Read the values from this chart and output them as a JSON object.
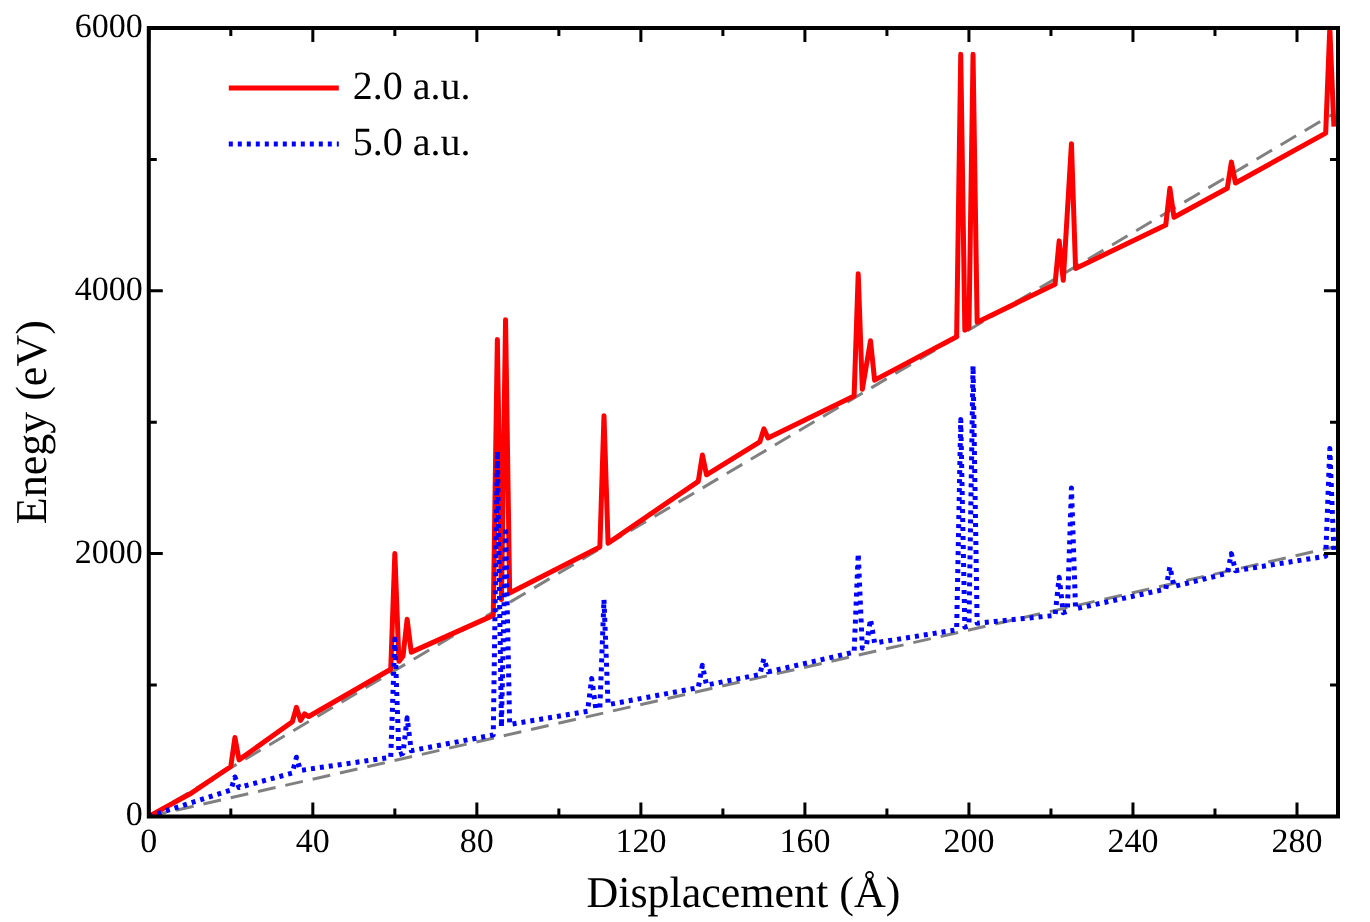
{
  "chart_data": {
    "type": "line",
    "xlabel": "Displacement (Å)",
    "ylabel": "Enegy (eV)",
    "xlim": [
      0,
      290
    ],
    "xticks": [
      0,
      40,
      80,
      120,
      160,
      200,
      240,
      280
    ],
    "ylim": [
      0,
      6000
    ],
    "yticks": [
      0,
      2000,
      4000,
      6000
    ],
    "grid": false,
    "legend": "top left",
    "marker": "none",
    "series": [
      {
        "name": "2.0 a.u.",
        "color": "#ff0000",
        "line_style": "solid",
        "x": [
          0,
          10,
          20,
          21,
          22,
          35,
          36,
          37,
          38,
          39,
          59,
          60,
          61,
          62,
          63,
          64,
          84,
          85,
          86,
          87,
          88,
          110,
          111,
          112,
          134,
          135,
          136,
          149,
          150,
          151,
          172,
          173,
          174,
          176,
          177,
          197,
          198,
          199,
          200,
          201,
          202,
          221,
          222,
          223,
          225,
          226,
          248,
          249,
          250,
          263,
          264,
          265,
          287,
          288,
          289
        ],
        "values": [
          0,
          170,
          380,
          600,
          430,
          720,
          830,
          730,
          780,
          760,
          1120,
          2000,
          1180,
          1220,
          1500,
          1250,
          1530,
          3630,
          1650,
          3780,
          1700,
          2050,
          3050,
          2080,
          2550,
          2750,
          2600,
          2850,
          2950,
          2880,
          3200,
          4130,
          3250,
          3620,
          3320,
          3650,
          5800,
          3700,
          3720,
          5800,
          3760,
          4050,
          4380,
          4080,
          5120,
          4170,
          4500,
          4780,
          4560,
          4780,
          4980,
          4820,
          5200,
          6000,
          5250
        ]
      },
      {
        "name": "5.0 a.u.",
        "color": "#0000ff",
        "line_style": "dotted",
        "x": [
          0,
          10,
          20,
          21,
          22,
          35,
          36,
          37,
          59,
          60,
          61,
          62,
          63,
          64,
          84,
          85,
          86,
          87,
          88,
          107,
          108,
          109,
          110,
          111,
          112,
          134,
          135,
          136,
          149,
          150,
          151,
          172,
          173,
          174,
          175,
          176,
          177,
          197,
          198,
          199,
          200,
          201,
          202,
          221,
          222,
          223,
          224,
          225,
          226,
          248,
          249,
          250,
          263,
          264,
          265,
          287,
          288,
          289
        ],
        "values": [
          0,
          100,
          200,
          300,
          220,
          330,
          450,
          350,
          450,
          1350,
          470,
          480,
          750,
          500,
          620,
          2780,
          680,
          2200,
          700,
          800,
          1050,
          820,
          830,
          1650,
          850,
          980,
          1150,
          1000,
          1080,
          1200,
          1100,
          1250,
          2000,
          1280,
          1300,
          1500,
          1320,
          1420,
          3020,
          1440,
          1450,
          3430,
          1470,
          1530,
          1820,
          1550,
          1560,
          2500,
          1580,
          1730,
          1900,
          1750,
          1850,
          2000,
          1870,
          1980,
          2800,
          2020
        ]
      },
      {
        "color": "#808080",
        "line_style": "dashed",
        "x": [
          0,
          289
        ],
        "values": [
          0,
          5350
        ]
      },
      {
        "color": "#808080",
        "line_style": "dashed",
        "x": [
          0,
          289
        ],
        "values": [
          0,
          2050
        ]
      }
    ]
  }
}
